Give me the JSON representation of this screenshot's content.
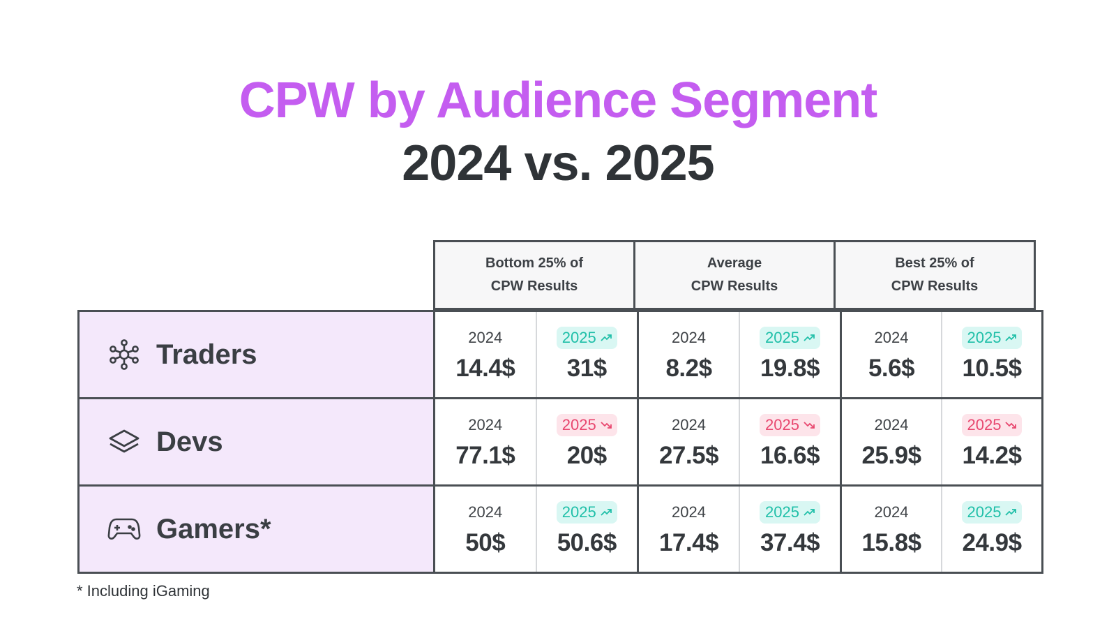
{
  "title_line1": "CPW by Audience Segment",
  "title_line2": "2024 vs. 2025",
  "headers": [
    "Bottom 25% of\nCPW Results",
    "Average\nCPW Results",
    "Best 25% of\nCPW Results"
  ],
  "year_prev": "2024",
  "year_curr": "2025",
  "colors": {
    "title_accent": "#c45df0",
    "up": "#1fbfa8",
    "down": "#e8466e",
    "segment_bg": "#f4e8fb"
  },
  "footnote": "* Including iGaming",
  "chart_data": {
    "type": "table",
    "title": "CPW by Audience Segment 2024 vs. 2025",
    "columns": [
      "Bottom 25% of CPW Results",
      "Average CPW Results",
      "Best 25% of CPW Results"
    ],
    "rows": [
      {
        "segment": "Traders",
        "icon": "network-icon",
        "trend": "up",
        "cells": [
          {
            "v2024": "14.4$",
            "v2025": "31$"
          },
          {
            "v2024": "8.2$",
            "v2025": "19.8$"
          },
          {
            "v2024": "5.6$",
            "v2025": "10.5$"
          }
        ]
      },
      {
        "segment": "Devs",
        "icon": "layers-icon",
        "trend": "down",
        "cells": [
          {
            "v2024": "77.1$",
            "v2025": "20$"
          },
          {
            "v2024": "27.5$",
            "v2025": "16.6$"
          },
          {
            "v2024": "25.9$",
            "v2025": "14.2$"
          }
        ]
      },
      {
        "segment": "Gamers*",
        "icon": "gamepad-icon",
        "trend": "up",
        "cells": [
          {
            "v2024": "50$",
            "v2025": "50.6$"
          },
          {
            "v2024": "17.4$",
            "v2025": "37.4$"
          },
          {
            "v2024": "15.8$",
            "v2025": "24.9$"
          }
        ]
      }
    ]
  }
}
